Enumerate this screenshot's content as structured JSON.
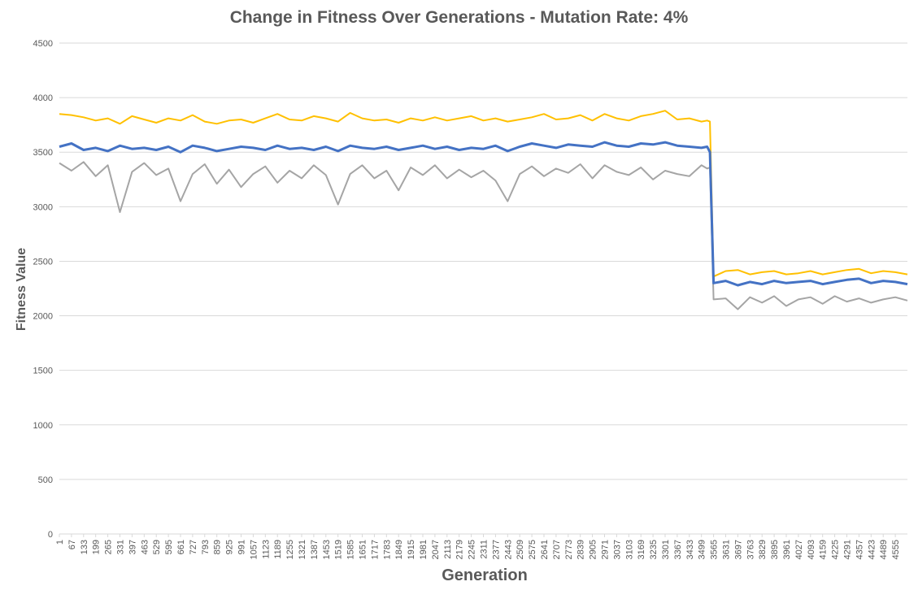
{
  "chart_data": {
    "type": "line",
    "title": "Change in Fitness Over Generations - Mutation Rate: 4%",
    "xlabel": "Generation",
    "ylabel": "Fitness Value",
    "ylim": [
      0,
      4500
    ],
    "y_ticks": [
      0,
      500,
      1000,
      1500,
      2000,
      2500,
      3000,
      3500,
      4000,
      4500
    ],
    "x_range": [
      1,
      4621
    ],
    "x_ticks": [
      "1",
      "67",
      "133",
      "199",
      "265",
      "331",
      "397",
      "463",
      "529",
      "595",
      "661",
      "727",
      "793",
      "859",
      "925",
      "991",
      "1057",
      "1123",
      "1189",
      "1255",
      "1321",
      "1387",
      "1453",
      "1519",
      "1585",
      "1651",
      "1717",
      "1783",
      "1849",
      "1915",
      "1981",
      "2047",
      "2113",
      "2179",
      "2245",
      "2311",
      "2377",
      "2443",
      "2509",
      "2575",
      "2641",
      "2707",
      "2773",
      "2839",
      "2905",
      "2971",
      "3037",
      "3103",
      "3169",
      "3235",
      "3301",
      "3367",
      "3433",
      "3499",
      "3565",
      "3631",
      "3697",
      "3763",
      "3829",
      "3895",
      "3961",
      "4027",
      "4093",
      "4159",
      "4225",
      "4291",
      "4357",
      "4423",
      "4489",
      "4555"
    ],
    "grid": true,
    "legend": "none",
    "series": [
      {
        "color": "#A5A5A5",
        "x": [
          1,
          67,
          133,
          199,
          265,
          331,
          397,
          463,
          529,
          595,
          661,
          727,
          793,
          859,
          925,
          991,
          1057,
          1123,
          1189,
          1255,
          1321,
          1387,
          1453,
          1519,
          1585,
          1651,
          1717,
          1783,
          1849,
          1915,
          1981,
          2047,
          2113,
          2179,
          2245,
          2311,
          2377,
          2443,
          2509,
          2575,
          2641,
          2707,
          2773,
          2839,
          2905,
          2971,
          3037,
          3103,
          3169,
          3235,
          3301,
          3367,
          3433,
          3499,
          3530,
          3545,
          3565,
          3631,
          3697,
          3763,
          3829,
          3895,
          3961,
          4027,
          4093,
          4159,
          4225,
          4291,
          4357,
          4423,
          4489,
          4555,
          4621
        ],
        "y": [
          3400,
          3330,
          3410,
          3280,
          3380,
          2950,
          3320,
          3400,
          3290,
          3350,
          3050,
          3300,
          3390,
          3210,
          3340,
          3180,
          3300,
          3370,
          3220,
          3330,
          3260,
          3380,
          3290,
          3020,
          3300,
          3380,
          3260,
          3330,
          3150,
          3360,
          3290,
          3380,
          3260,
          3340,
          3270,
          3330,
          3240,
          3050,
          3300,
          3370,
          3280,
          3350,
          3310,
          3390,
          3260,
          3380,
          3320,
          3290,
          3360,
          3250,
          3330,
          3300,
          3280,
          3380,
          3350,
          3360,
          2150,
          2160,
          2060,
          2170,
          2120,
          2180,
          2090,
          2150,
          2170,
          2110,
          2180,
          2130,
          2160,
          2120,
          2150,
          2170,
          2140
        ]
      },
      {
        "color": "#FFC000",
        "x": [
          1,
          67,
          133,
          199,
          265,
          331,
          397,
          463,
          529,
          595,
          661,
          727,
          793,
          859,
          925,
          991,
          1057,
          1123,
          1189,
          1255,
          1321,
          1387,
          1453,
          1519,
          1585,
          1651,
          1717,
          1783,
          1849,
          1915,
          1981,
          2047,
          2113,
          2179,
          2245,
          2311,
          2377,
          2443,
          2509,
          2575,
          2641,
          2707,
          2773,
          2839,
          2905,
          2971,
          3037,
          3103,
          3169,
          3235,
          3301,
          3367,
          3433,
          3499,
          3530,
          3545,
          3565,
          3631,
          3697,
          3763,
          3829,
          3895,
          3961,
          4027,
          4093,
          4159,
          4225,
          4291,
          4357,
          4423,
          4489,
          4555,
          4621
        ],
        "y": [
          3850,
          3840,
          3820,
          3790,
          3810,
          3760,
          3830,
          3800,
          3770,
          3810,
          3790,
          3840,
          3780,
          3760,
          3790,
          3800,
          3770,
          3810,
          3850,
          3800,
          3790,
          3830,
          3810,
          3780,
          3860,
          3810,
          3790,
          3800,
          3770,
          3810,
          3790,
          3820,
          3790,
          3810,
          3830,
          3790,
          3810,
          3780,
          3800,
          3820,
          3850,
          3800,
          3810,
          3840,
          3790,
          3850,
          3810,
          3790,
          3830,
          3850,
          3880,
          3800,
          3810,
          3780,
          3790,
          3780,
          2360,
          2410,
          2420,
          2380,
          2400,
          2410,
          2380,
          2390,
          2410,
          2380,
          2400,
          2420,
          2430,
          2390,
          2410,
          2400,
          2380
        ]
      },
      {
        "color": "#4472C4",
        "x": [
          1,
          67,
          133,
          199,
          265,
          331,
          397,
          463,
          529,
          595,
          661,
          727,
          793,
          859,
          925,
          991,
          1057,
          1123,
          1189,
          1255,
          1321,
          1387,
          1453,
          1519,
          1585,
          1651,
          1717,
          1783,
          1849,
          1915,
          1981,
          2047,
          2113,
          2179,
          2245,
          2311,
          2377,
          2443,
          2509,
          2575,
          2641,
          2707,
          2773,
          2839,
          2905,
          2971,
          3037,
          3103,
          3169,
          3235,
          3301,
          3367,
          3433,
          3499,
          3530,
          3545,
          3565,
          3631,
          3697,
          3763,
          3829,
          3895,
          3961,
          4027,
          4093,
          4159,
          4225,
          4291,
          4357,
          4423,
          4489,
          4555,
          4621
        ],
        "y": [
          3550,
          3580,
          3520,
          3540,
          3510,
          3560,
          3530,
          3540,
          3520,
          3550,
          3500,
          3560,
          3540,
          3510,
          3530,
          3550,
          3540,
          3520,
          3560,
          3530,
          3540,
          3520,
          3550,
          3510,
          3560,
          3540,
          3530,
          3550,
          3520,
          3540,
          3560,
          3530,
          3550,
          3520,
          3540,
          3530,
          3560,
          3510,
          3550,
          3580,
          3560,
          3540,
          3570,
          3560,
          3550,
          3590,
          3560,
          3550,
          3580,
          3570,
          3590,
          3560,
          3550,
          3540,
          3550,
          3500,
          2300,
          2320,
          2280,
          2310,
          2290,
          2320,
          2300,
          2310,
          2320,
          2290,
          2310,
          2330,
          2340,
          2300,
          2320,
          2310,
          2290
        ]
      }
    ]
  }
}
